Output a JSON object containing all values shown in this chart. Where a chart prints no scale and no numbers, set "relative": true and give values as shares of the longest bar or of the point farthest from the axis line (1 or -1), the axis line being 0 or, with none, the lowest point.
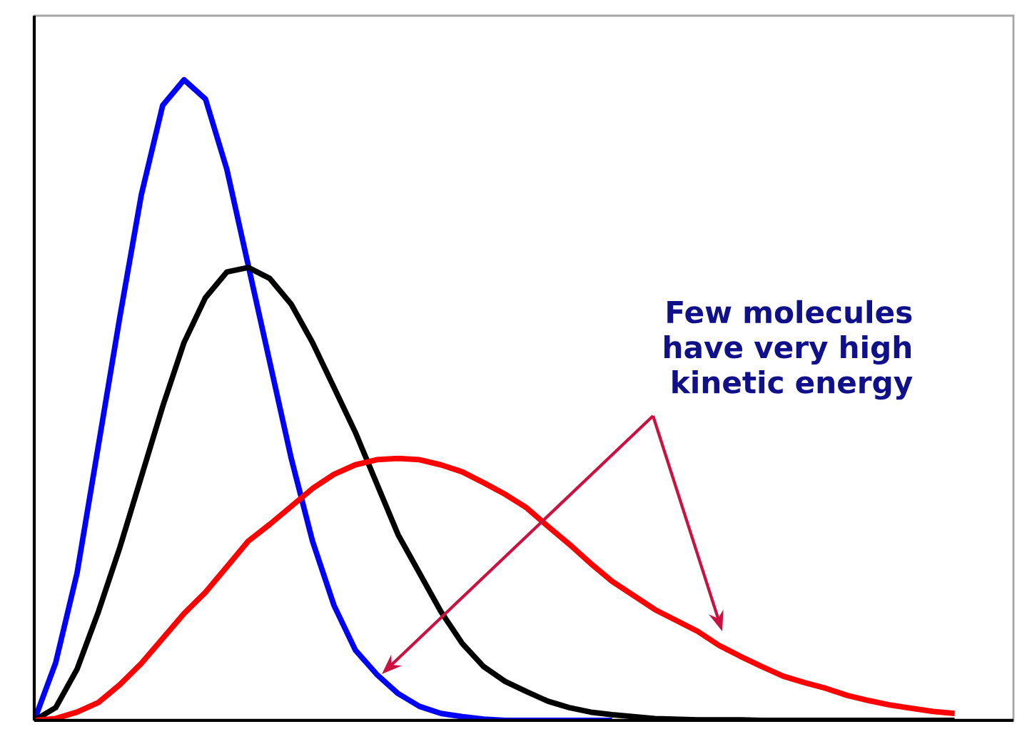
{
  "chart_data": {
    "type": "line",
    "relative": true,
    "annotations": [
      "Few molecules have  very high kinetic energy"
    ],
    "categories": [
      null,
      null,
      null,
      null,
      null,
      null,
      null,
      null,
      null,
      null,
      null,
      null,
      null,
      null,
      null,
      null,
      null,
      null,
      null,
      null,
      null,
      null,
      null,
      null,
      null,
      null,
      null,
      null,
      null,
      null,
      null,
      null,
      null,
      null,
      null,
      null,
      null,
      null,
      null,
      null,
      null,
      null,
      null,
      null
    ],
    "series": [
      {
        "color": "#0000ff",
        "values": [
          0,
          0.09,
          0.23,
          0.43,
          0.63,
          0.82,
          0.96,
          1.0,
          0.97,
          0.86,
          0.71,
          0.56,
          0.41,
          0.28,
          0.18,
          0.11,
          0.072,
          0.042,
          0.022,
          0.011,
          0.006,
          0.002,
          0,
          0,
          0,
          0,
          0,
          0,
          null,
          null,
          null,
          null,
          null,
          null,
          null,
          null,
          null,
          null,
          null,
          null,
          null,
          null,
          null,
          null
        ]
      },
      {
        "color": "#000000",
        "values": [
          0,
          0.02,
          0.08,
          0.17,
          0.27,
          0.38,
          0.49,
          0.59,
          0.66,
          0.7,
          0.707,
          0.69,
          0.65,
          0.59,
          0.52,
          0.45,
          0.37,
          0.29,
          0.23,
          0.17,
          0.12,
          0.084,
          0.061,
          0.045,
          0.03,
          0.02,
          0.013,
          0.009,
          0.006,
          0.003,
          0.002,
          0.001,
          0.001,
          0.001,
          0,
          0,
          0,
          0,
          0,
          0,
          0,
          0,
          0,
          0
        ]
      },
      {
        "color": "#ff0000",
        "values": [
          0,
          0.003,
          0.013,
          0.028,
          0.056,
          0.089,
          0.128,
          0.167,
          0.2,
          0.24,
          0.28,
          0.306,
          0.334,
          0.362,
          0.384,
          0.399,
          0.407,
          0.409,
          0.407,
          0.399,
          0.388,
          0.371,
          0.353,
          0.332,
          0.303,
          0.275,
          0.245,
          0.217,
          0.195,
          0.173,
          0.156,
          0.139,
          0.117,
          0.1,
          0.084,
          0.069,
          0.059,
          0.05,
          0.039,
          0.031,
          0.024,
          0.019,
          0.014,
          0.011
        ]
      }
    ]
  }
}
